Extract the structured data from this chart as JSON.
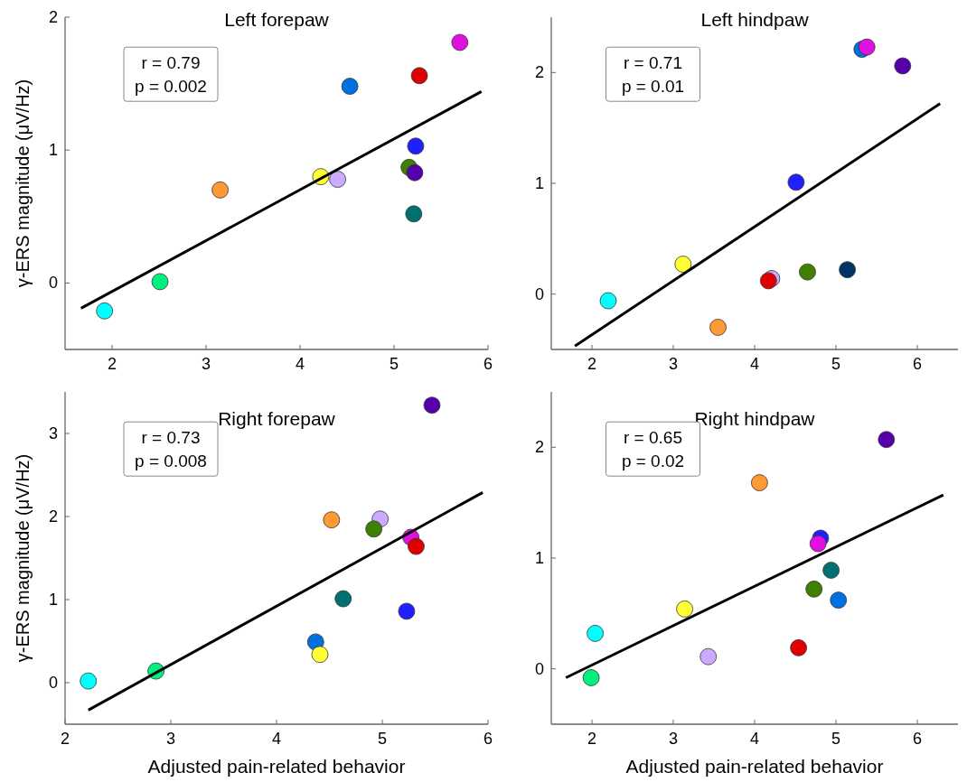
{
  "chart_data": [
    {
      "type": "scatter",
      "title": "Left forepaw",
      "ylabel": "γ-ERS magnitude (μV/Hz)",
      "annotations": [
        "r = 0.79",
        "p = 0.002"
      ],
      "xlim": [
        1.5,
        6
      ],
      "ylim": [
        -0.5,
        2
      ],
      "xticks": [
        2,
        3,
        4,
        5,
        6
      ],
      "yticks": [
        0,
        1,
        2
      ],
      "series": [
        {
          "marker": "circle",
          "x": [
            1.92,
            2.51,
            3.15,
            4.22,
            4.4,
            4.53,
            5.27,
            5.7,
            5.23,
            5.16,
            5.22,
            5.21
          ],
          "values": [
            -0.21,
            0.01,
            0.7,
            0.8,
            0.78,
            1.48,
            1.56,
            1.81,
            1.03,
            0.87,
            0.83,
            0.52
          ],
          "colors": [
            "#00ffff",
            "#00f080",
            "#ff9933",
            "#ffff33",
            "#ccaaff",
            "#0070e0",
            "#e00000",
            "#e010e0",
            "#2020ff",
            "#408000",
            "#5500aa",
            "#007070"
          ]
        },
        {
          "type": "line",
          "x": [
            1.67,
            5.93
          ],
          "values": [
            -0.19,
            1.44
          ],
          "color": "#000000"
        }
      ]
    },
    {
      "type": "scatter",
      "title": "Left hindpaw",
      "annotations": [
        "r = 0.71",
        "p = 0.01"
      ],
      "xlim": [
        1.5,
        6.5
      ],
      "ylim": [
        -0.5,
        2.5
      ],
      "xticks": [
        2,
        3,
        4,
        5,
        6
      ],
      "yticks": [
        0,
        1,
        2
      ],
      "series": [
        {
          "marker": "circle",
          "x": [
            2.2,
            3.12,
            3.55,
            4.21,
            4.17,
            4.65,
            5.14,
            4.51,
            5.32,
            5.38,
            5.82
          ],
          "values": [
            -0.06,
            0.27,
            -0.3,
            0.14,
            0.12,
            0.2,
            0.22,
            1.01,
            2.21,
            2.23,
            2.06
          ],
          "colors": [
            "#00ffff",
            "#ffff33",
            "#ff9933",
            "#ccaaff",
            "#e00000",
            "#408000",
            "#003366",
            "#2020ff",
            "#0070e0",
            "#e010e0",
            "#5500aa"
          ]
        },
        {
          "type": "line",
          "x": [
            1.79,
            6.28
          ],
          "values": [
            -0.47,
            1.72
          ],
          "color": "#000000"
        }
      ]
    },
    {
      "type": "scatter",
      "title": "Right forepaw",
      "xlabel": "Adjusted pain-related behavior",
      "ylabel": "γ-ERS magnitude (μV/Hz)",
      "annotations": [
        "r = 0.73",
        "p = 0.008"
      ],
      "xlim": [
        2,
        6
      ],
      "ylim": [
        -0.5,
        3.5
      ],
      "xticks": [
        2,
        3,
        4,
        5,
        6
      ],
      "yticks": [
        0,
        1,
        2,
        3
      ],
      "series": [
        {
          "marker": "circle",
          "x": [
            2.22,
            2.86,
            4.37,
            4.41,
            4.63,
            5.23,
            4.52,
            4.98,
            4.92,
            5.27,
            5.32,
            5.47
          ],
          "values": [
            0.02,
            0.14,
            0.49,
            0.34,
            1.01,
            0.86,
            1.96,
            1.97,
            1.85,
            1.75,
            1.64,
            3.34
          ],
          "colors": [
            "#00ffff",
            "#00f080",
            "#0070e0",
            "#ffff33",
            "#007070",
            "#2020ff",
            "#ff9933",
            "#ccaaff",
            "#408000",
            "#e010e0",
            "#e00000",
            "#5500aa"
          ]
        },
        {
          "type": "line",
          "x": [
            2.22,
            5.95
          ],
          "values": [
            -0.33,
            2.29
          ],
          "color": "#000000"
        }
      ]
    },
    {
      "type": "scatter",
      "title": "Right hindpaw",
      "xlabel": "Adjusted pain-related behavior",
      "annotations": [
        "r = 0.65",
        "p = 0.02"
      ],
      "xlim": [
        1.5,
        6.5
      ],
      "ylim": [
        -0.5,
        2.5
      ],
      "xticks": [
        2,
        3,
        4,
        5,
        6
      ],
      "yticks": [
        0,
        1,
        2
      ],
      "series": [
        {
          "marker": "circle",
          "x": [
            1.99,
            2.04,
            3.14,
            3.43,
            4.06,
            4.54,
            4.73,
            4.81,
            4.78,
            4.94,
            5.03,
            5.62
          ],
          "values": [
            -0.08,
            0.32,
            0.54,
            0.11,
            1.68,
            0.19,
            0.72,
            1.18,
            1.13,
            0.89,
            0.62,
            2.07
          ],
          "colors": [
            "#00f080",
            "#00ffff",
            "#ffff33",
            "#ccaaff",
            "#ff9933",
            "#e00000",
            "#408000",
            "#2020ff",
            "#e010e0",
            "#007070",
            "#0070e0",
            "#5500aa"
          ]
        },
        {
          "type": "line",
          "x": [
            1.68,
            6.32
          ],
          "values": [
            -0.08,
            1.57
          ],
          "color": "#000000"
        }
      ]
    }
  ]
}
